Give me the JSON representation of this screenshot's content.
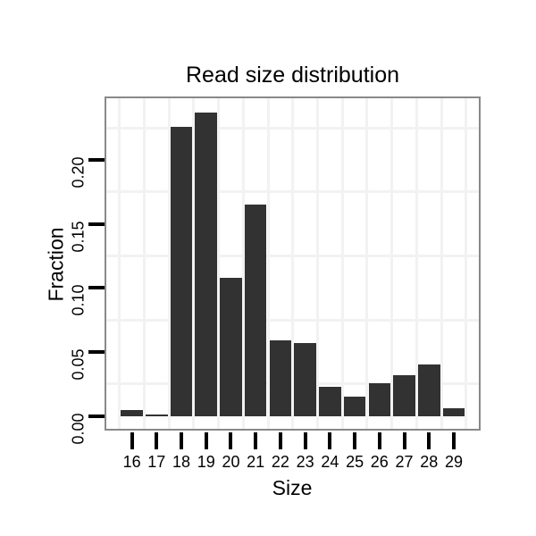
{
  "page": {
    "background": "#ffffff"
  },
  "chart_data": {
    "type": "bar",
    "title": "Read size distribution",
    "xlabel": "Size",
    "ylabel": "Fraction",
    "categories": [
      "16",
      "17",
      "18",
      "19",
      "20",
      "21",
      "22",
      "23",
      "24",
      "25",
      "26",
      "27",
      "28",
      "29"
    ],
    "values": [
      0.005,
      0.001,
      0.226,
      0.237,
      0.108,
      0.165,
      0.059,
      0.057,
      0.023,
      0.015,
      0.026,
      0.032,
      0.04,
      0.006
    ],
    "y_tick_labels": [
      "0.00",
      "0.05",
      "0.10",
      "0.15",
      "0.20"
    ],
    "y_tick_values": [
      0,
      0.05,
      0.1,
      0.15,
      0.2
    ],
    "ylim": [
      -0.0113,
      0.2495
    ],
    "grid": "faint minor gridlines only",
    "minor_grid_y": [
      0.025,
      0.075,
      0.125,
      0.175,
      0.225
    ],
    "legend_position": "none",
    "bar_color": "#323232",
    "grid_color": "#f2f2f2",
    "panel_border_color": "#898989",
    "tick_color": "#000000",
    "text_color": "#000000"
  }
}
